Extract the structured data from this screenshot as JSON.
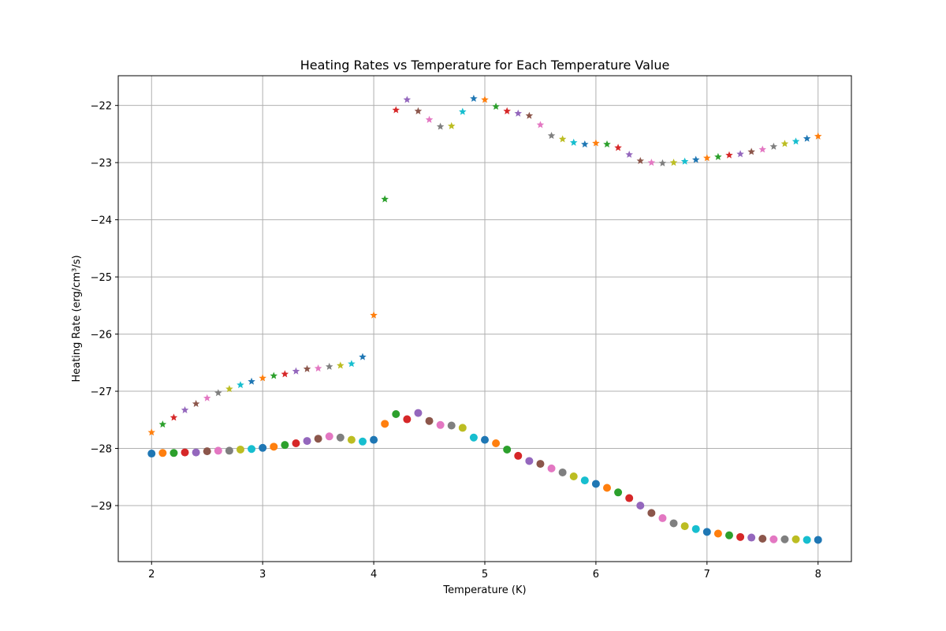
{
  "chart_data": {
    "type": "scatter",
    "title": "Heating Rates vs Temperature for Each Temperature Value",
    "xlabel": "Temperature (K)",
    "ylabel": "Heating Rate (erg/cm³/s)",
    "xlim": [
      1.7,
      8.3
    ],
    "ylim": [
      -29.98,
      -21.48
    ],
    "xticks": [
      2,
      3,
      4,
      5,
      6,
      7,
      8
    ],
    "yticks": [
      -29,
      -28,
      -27,
      -26,
      -25,
      -24,
      -23,
      -22
    ],
    "grid": true,
    "palette": [
      "#1f77b4",
      "#ff7f0e",
      "#2ca02c",
      "#d62728",
      "#9467bd",
      "#8c564b",
      "#e377c2",
      "#7f7f7f",
      "#bcbd22",
      "#17becf"
    ],
    "series": [
      {
        "marker": "star",
        "color_offset": 1,
        "x": [
          2.0,
          2.1,
          2.2,
          2.3,
          2.4,
          2.5,
          2.6,
          2.7,
          2.8,
          2.9,
          3.0,
          3.1,
          3.2,
          3.3,
          3.4,
          3.5,
          3.6,
          3.7,
          3.8,
          3.9,
          4.0,
          4.1,
          4.2,
          4.3,
          4.4,
          4.5,
          4.6,
          4.7,
          4.8,
          4.9,
          5.0,
          5.1,
          5.2,
          5.3,
          5.4,
          5.5,
          5.6,
          5.7,
          5.8,
          5.9,
          6.0,
          6.1,
          6.2,
          6.3,
          6.4,
          6.5,
          6.6,
          6.7,
          6.8,
          6.9,
          7.0,
          7.1,
          7.2,
          7.3,
          7.4,
          7.5,
          7.6,
          7.7,
          7.8,
          7.9,
          8.0
        ],
        "y": [
          -27.72,
          -27.58,
          -27.46,
          -27.33,
          -27.22,
          -27.12,
          -27.03,
          -26.96,
          -26.89,
          -26.83,
          -26.77,
          -26.73,
          -26.7,
          -26.65,
          -26.61,
          -26.6,
          -26.57,
          -26.55,
          -26.52,
          -26.4,
          -25.67,
          -23.64,
          -22.08,
          -21.9,
          -22.1,
          -22.25,
          -22.37,
          -22.36,
          -22.11,
          -21.88,
          -21.9,
          -22.02,
          -22.1,
          -22.14,
          -22.18,
          -22.34,
          -22.53,
          -22.59,
          -22.65,
          -22.68,
          -22.66,
          -22.68,
          -22.74,
          -22.86,
          -22.97,
          -23.0,
          -23.01,
          -23.0,
          -22.98,
          -22.95,
          -22.92,
          -22.9,
          -22.87,
          -22.85,
          -22.81,
          -22.77,
          -22.72,
          -22.67,
          -22.63,
          -22.58,
          -22.54
        ]
      },
      {
        "marker": "circle",
        "color_offset": 0,
        "x": [
          2.0,
          2.1,
          2.2,
          2.3,
          2.4,
          2.5,
          2.6,
          2.7,
          2.8,
          2.9,
          3.0,
          3.1,
          3.2,
          3.3,
          3.4,
          3.5,
          3.6,
          3.7,
          3.8,
          3.9,
          4.0,
          4.1,
          4.2,
          4.3,
          4.4,
          4.5,
          4.6,
          4.7,
          4.8,
          4.9,
          5.0,
          5.1,
          5.2,
          5.3,
          5.4,
          5.5,
          5.6,
          5.7,
          5.8,
          5.9,
          6.0,
          6.1,
          6.2,
          6.3,
          6.4,
          6.5,
          6.6,
          6.7,
          6.8,
          6.9,
          7.0,
          7.1,
          7.2,
          7.3,
          7.4,
          7.5,
          7.6,
          7.7,
          7.8,
          7.9,
          8.0
        ],
        "y": [
          -28.09,
          -28.08,
          -28.08,
          -28.07,
          -28.07,
          -28.05,
          -28.04,
          -28.04,
          -28.02,
          -28.01,
          -27.99,
          -27.97,
          -27.94,
          -27.91,
          -27.87,
          -27.83,
          -27.79,
          -27.81,
          -27.85,
          -27.88,
          -27.85,
          -27.57,
          -27.4,
          -27.49,
          -27.38,
          -27.52,
          -27.59,
          -27.6,
          -27.64,
          -27.81,
          -27.85,
          -27.91,
          -28.02,
          -28.13,
          -28.22,
          -28.27,
          -28.35,
          -28.42,
          -28.49,
          -28.56,
          -28.62,
          -28.69,
          -28.77,
          -28.87,
          -29.0,
          -29.13,
          -29.22,
          -29.31,
          -29.36,
          -29.41,
          -29.46,
          -29.49,
          -29.52,
          -29.55,
          -29.56,
          -29.58,
          -29.59,
          -29.59,
          -29.59,
          -29.6,
          -29.6
        ]
      }
    ]
  }
}
